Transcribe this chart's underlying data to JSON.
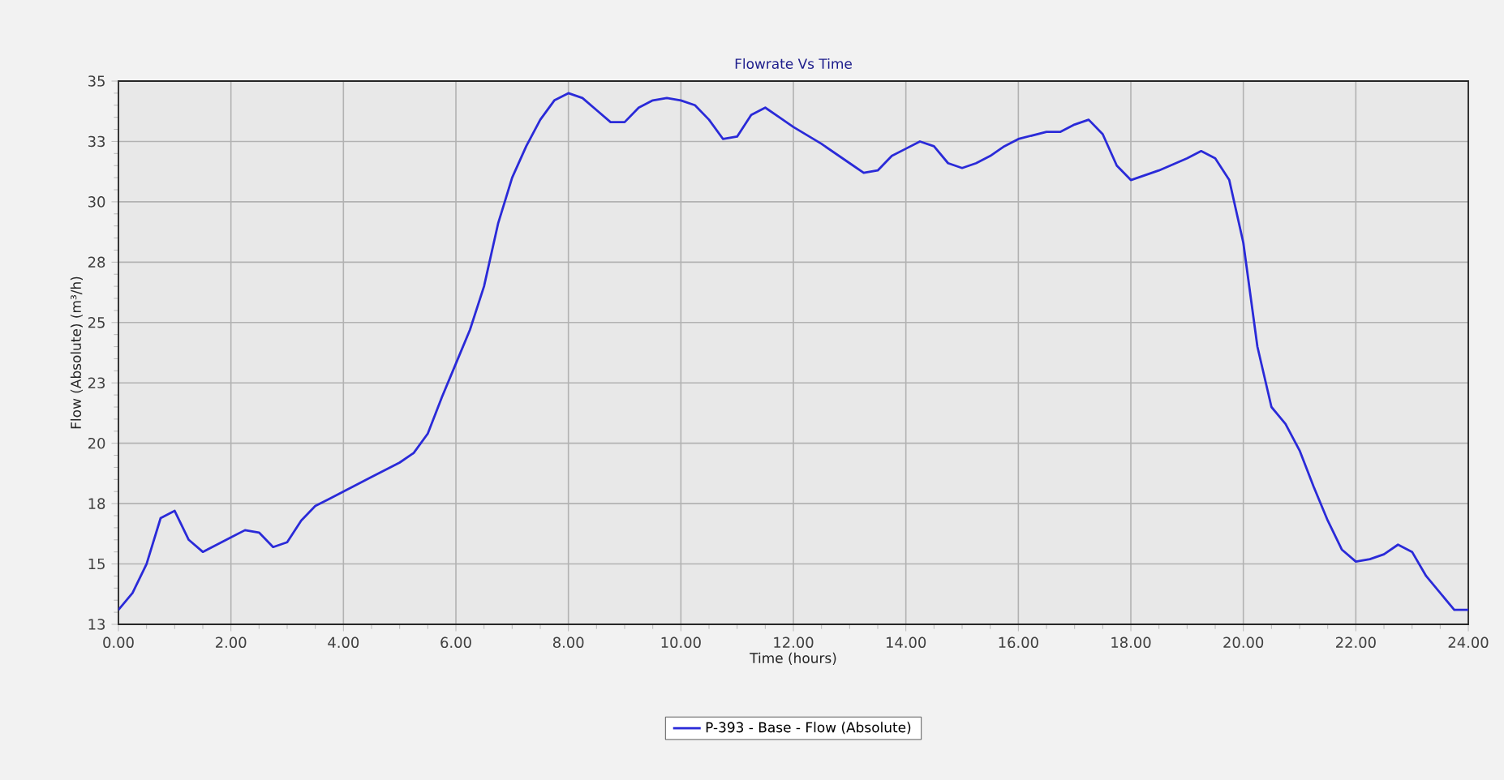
{
  "chart_data": {
    "type": "line",
    "title": "Flowrate Vs Time",
    "xlabel": "Time (hours)",
    "ylabel": "Flow (Absolute) (m³/h)",
    "xlim": [
      0,
      24
    ],
    "ylim": [
      12.5,
      35
    ],
    "xticks": [
      {
        "value": 0,
        "label": "0.00"
      },
      {
        "value": 2,
        "label": "2.00"
      },
      {
        "value": 4,
        "label": "4.00"
      },
      {
        "value": 6,
        "label": "6.00"
      },
      {
        "value": 8,
        "label": "8.00"
      },
      {
        "value": 10,
        "label": "10.00"
      },
      {
        "value": 12,
        "label": "12.00"
      },
      {
        "value": 14,
        "label": "14.00"
      },
      {
        "value": 16,
        "label": "16.00"
      },
      {
        "value": 18,
        "label": "18.00"
      },
      {
        "value": 20,
        "label": "20.00"
      },
      {
        "value": 22,
        "label": "22.00"
      },
      {
        "value": 24,
        "label": "24.00"
      }
    ],
    "yticks": [
      {
        "value": 12.5,
        "label": "13"
      },
      {
        "value": 15,
        "label": "15"
      },
      {
        "value": 17.5,
        "label": "18"
      },
      {
        "value": 20,
        "label": "20"
      },
      {
        "value": 22.5,
        "label": "23"
      },
      {
        "value": 25,
        "label": "25"
      },
      {
        "value": 27.5,
        "label": "28"
      },
      {
        "value": 30,
        "label": "30"
      },
      {
        "value": 32.5,
        "label": "33"
      },
      {
        "value": 35,
        "label": "35"
      }
    ],
    "grid": true,
    "legend": "bottom",
    "line_style": "solid",
    "series": [
      {
        "name": "P-393 - Base - Flow (Absolute)",
        "color": "#2a2ad8",
        "x": [
          0,
          0.25,
          0.5,
          0.75,
          1,
          1.25,
          1.5,
          1.75,
          2,
          2.25,
          2.5,
          2.75,
          3,
          3.25,
          3.5,
          3.75,
          4,
          4.5,
          5,
          5.25,
          5.5,
          5.75,
          6,
          6.25,
          6.5,
          6.75,
          7,
          7.25,
          7.5,
          7.75,
          8,
          8.25,
          8.5,
          8.75,
          9,
          9.25,
          9.5,
          9.75,
          10,
          10.25,
          10.5,
          10.75,
          11,
          11.25,
          11.5,
          11.75,
          12,
          12.5,
          13,
          13.25,
          13.5,
          13.75,
          14,
          14.25,
          14.5,
          14.75,
          15,
          15.25,
          15.5,
          15.75,
          16,
          16.5,
          16.75,
          17,
          17.25,
          17.5,
          17.75,
          18,
          18.5,
          19,
          19.25,
          19.5,
          19.75,
          20,
          20.25,
          20.5,
          20.75,
          21,
          21.25,
          21.5,
          21.75,
          22,
          22.25,
          22.5,
          22.75,
          23,
          23.25,
          23.5,
          23.75,
          24
        ],
        "values": [
          13.1,
          13.8,
          15.0,
          16.9,
          17.2,
          16.0,
          15.5,
          15.8,
          16.1,
          16.4,
          16.3,
          15.7,
          15.9,
          16.8,
          17.4,
          17.7,
          18.0,
          18.6,
          19.2,
          19.6,
          20.4,
          21.9,
          23.3,
          24.7,
          26.5,
          29.1,
          31.0,
          32.3,
          33.4,
          34.2,
          34.5,
          34.3,
          33.8,
          33.3,
          33.3,
          33.9,
          34.2,
          34.3,
          34.2,
          34.0,
          33.4,
          32.6,
          32.7,
          33.6,
          33.9,
          33.5,
          33.1,
          32.4,
          31.6,
          31.2,
          31.3,
          31.9,
          32.2,
          32.5,
          32.3,
          31.6,
          31.4,
          31.6,
          31.9,
          32.3,
          32.6,
          32.9,
          32.9,
          33.2,
          33.4,
          32.8,
          31.5,
          30.9,
          31.3,
          31.8,
          32.1,
          31.8,
          30.9,
          28.3,
          24.0,
          21.5,
          20.8,
          19.7,
          18.2,
          16.8,
          15.6,
          15.1,
          15.2,
          15.4,
          15.8,
          15.5,
          14.5,
          13.8,
          13.1,
          13.1
        ]
      }
    ]
  }
}
